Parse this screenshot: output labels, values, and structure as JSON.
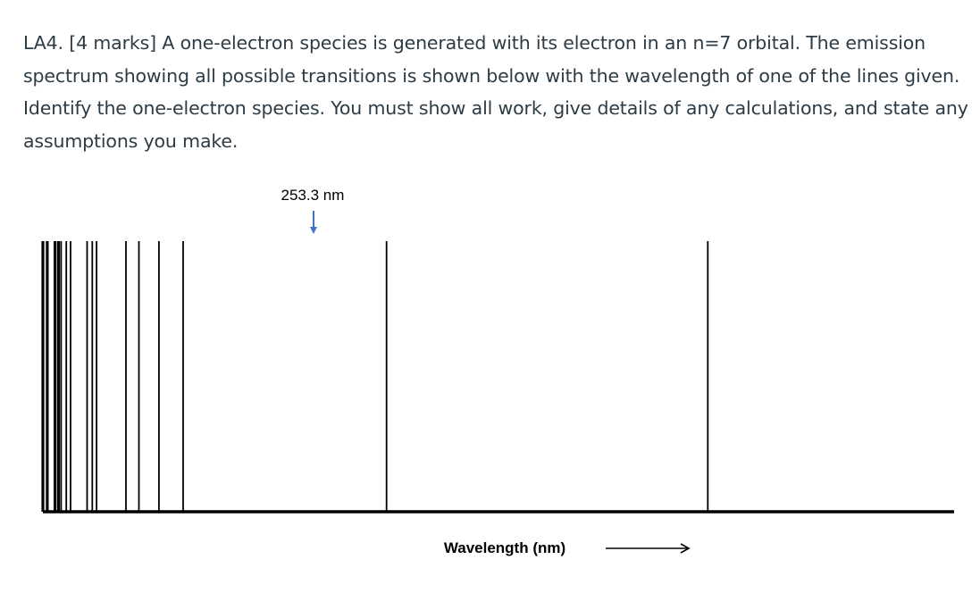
{
  "question": {
    "text": "LA4. [4 marks]  A one-electron species is generated with its electron in an n=7 orbital.  The emission spectrum showing all possible transitions is shown below with the wavelength of one of the lines given.  Identify the one-electron species.  You must show all work, give details of any calculations, and state any assumptions you make."
  },
  "spectrum": {
    "given_line_label": "253.3 nm",
    "given_line_index": 12,
    "xlabel": "Wavelength (nm)",
    "arrow_color": "#4472c4",
    "line_color": "#000000",
    "axis_direction": "increasing to the right",
    "lines": [
      {
        "pos": 0.0,
        "thick": true
      },
      {
        "pos": 0.0047,
        "thick": true
      },
      {
        "pos": 0.0131,
        "thick": true
      },
      {
        "pos": 0.0169,
        "thick": true
      },
      {
        "pos": 0.0197,
        "thick": false
      },
      {
        "pos": 0.0253,
        "thick": false
      },
      {
        "pos": 0.03,
        "thick": false
      },
      {
        "pos": 0.0478,
        "thick": false
      },
      {
        "pos": 0.0534,
        "thick": false
      },
      {
        "pos": 0.0581,
        "thick": false
      },
      {
        "pos": 0.0899,
        "thick": false
      },
      {
        "pos": 0.1039,
        "thick": false
      },
      {
        "pos": 0.1255,
        "thick": false
      },
      {
        "pos": 0.1517,
        "thick": false
      },
      {
        "pos": 0.3717,
        "thick": false
      },
      {
        "pos": 0.7191,
        "thick": false
      }
    ]
  }
}
